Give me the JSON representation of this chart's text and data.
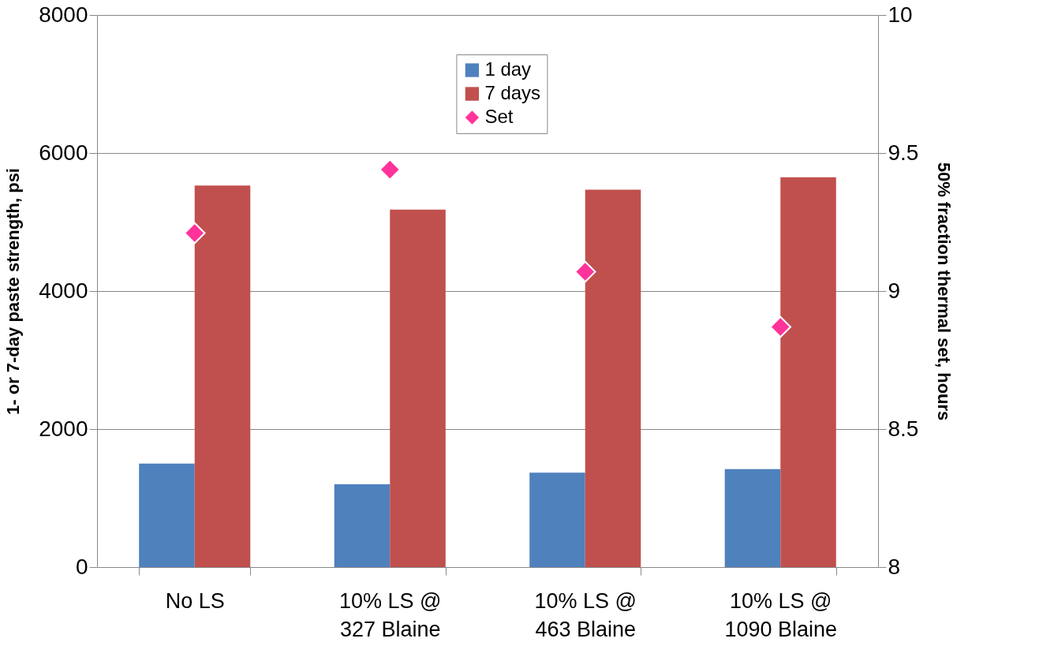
{
  "chart_data": {
    "type": "bar",
    "categories": [
      "No LS",
      "10% LS @\n327 Blaine",
      "10% LS @\n463 Blaine",
      "10% LS @\n1090 Blaine"
    ],
    "series": [
      {
        "name": "1 day",
        "color": "#4f81bd",
        "values": [
          1500,
          1200,
          1370,
          1420
        ]
      },
      {
        "name": "7 days",
        "color": "#c0504d",
        "values": [
          5530,
          5180,
          5470,
          5650
        ]
      },
      {
        "name": "Set",
        "type": "scatter",
        "axis": "y2",
        "color": "#ff3399",
        "marker": "diamond",
        "values": [
          9.21,
          9.44,
          9.07,
          8.87
        ]
      }
    ],
    "ylabel": "1- or 7-day paste strength, psi",
    "y2label": "50% fraction thermal set, hours",
    "ylim": [
      0,
      8000
    ],
    "yticks": [
      0,
      2000,
      4000,
      6000,
      8000
    ],
    "y2lim": [
      8,
      10
    ],
    "y2ticks": [
      8,
      8.5,
      9,
      9.5,
      10
    ],
    "grid": "y",
    "legend": "top"
  }
}
